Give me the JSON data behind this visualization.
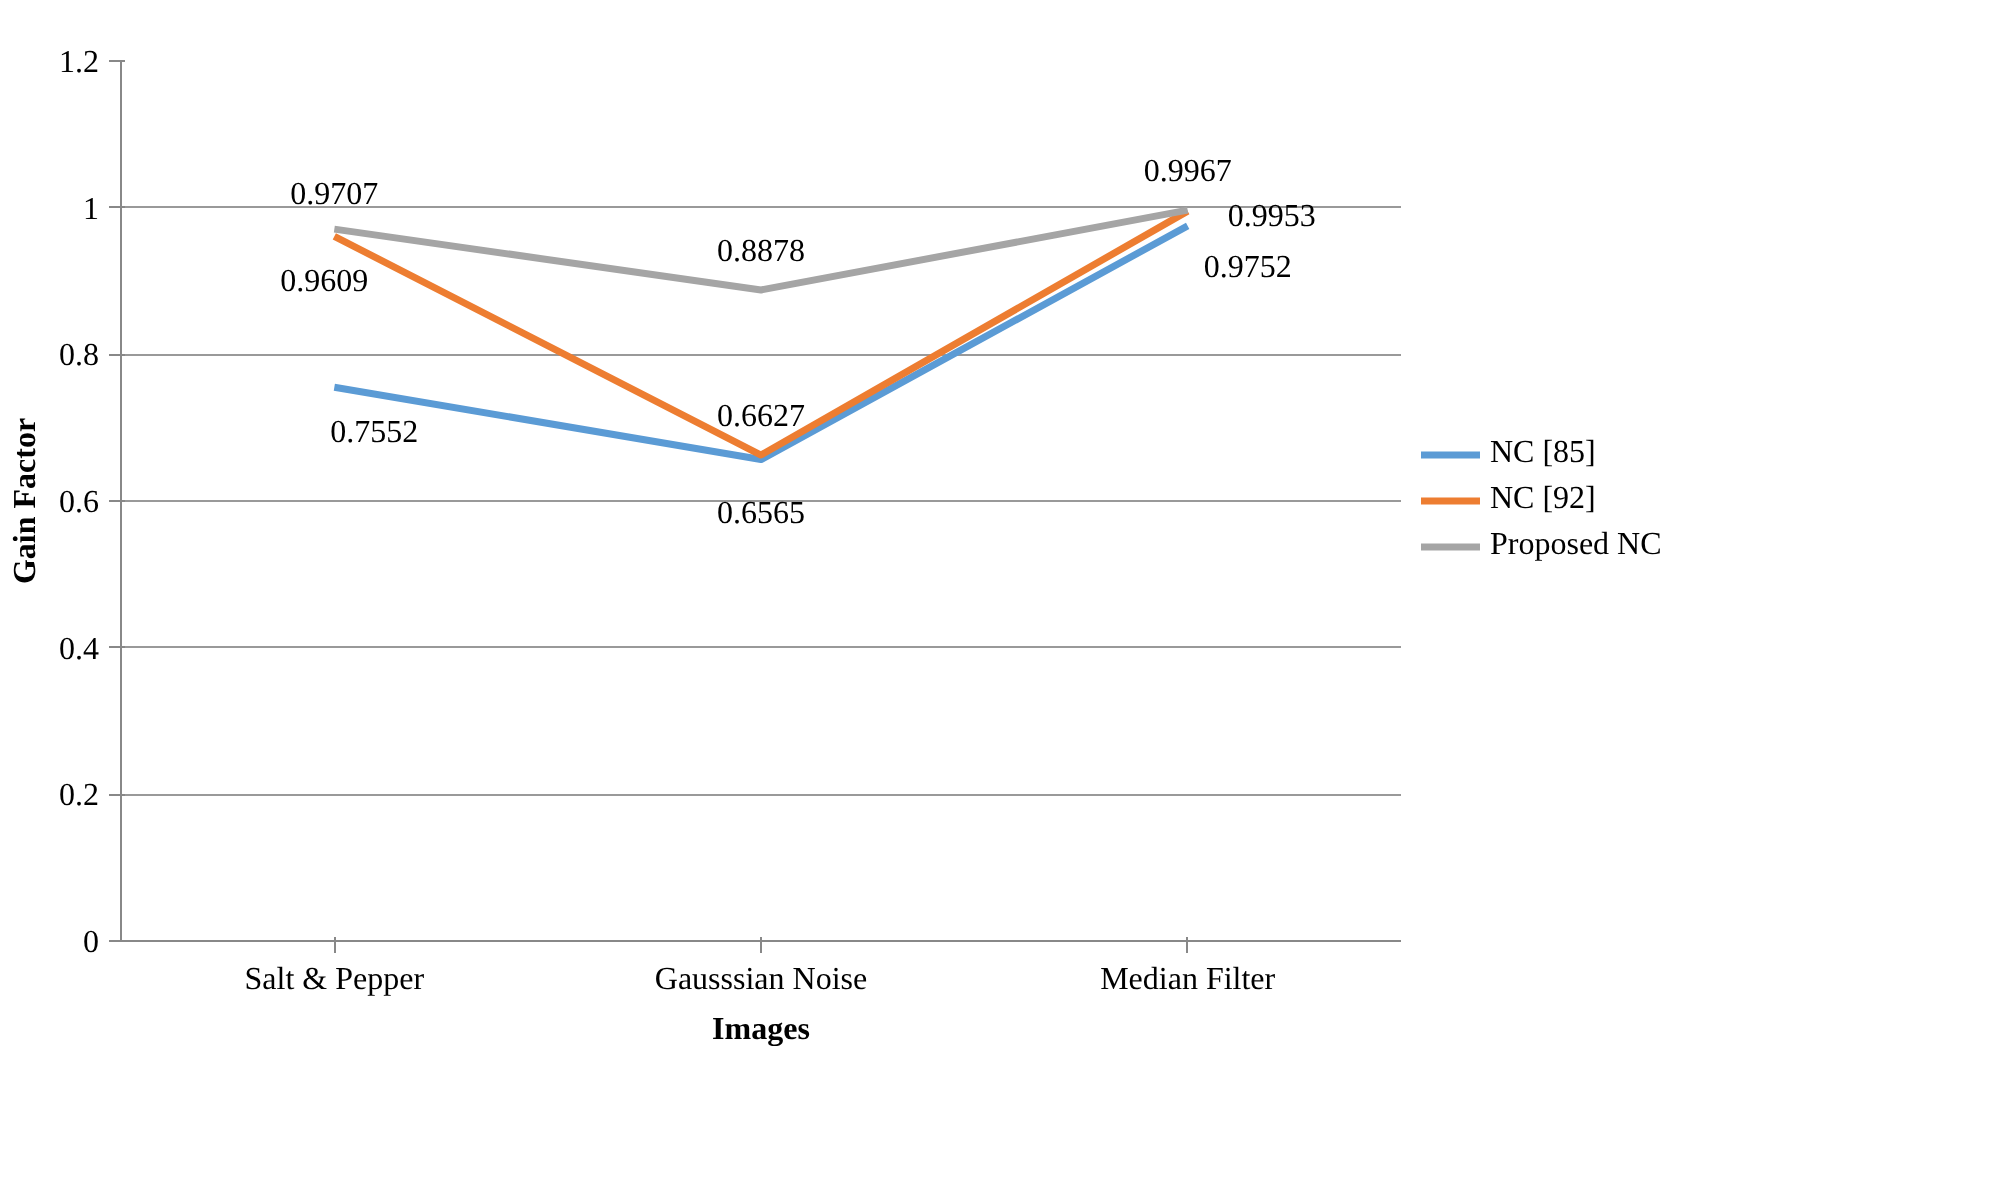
{
  "chart_data": {
    "type": "line",
    "xlabel": "Images",
    "ylabel": "Gain Factor",
    "categories": [
      "Salt & Pepper",
      "Gausssian Noise",
      "Median Filter"
    ],
    "series": [
      {
        "name": "NC [85]",
        "color": "#5b9bd5",
        "values": [
          0.7552,
          0.6565,
          0.9752
        ]
      },
      {
        "name": "NC [92]",
        "color": "#ed7d31",
        "values": [
          0.9609,
          0.6627,
          0.9953
        ]
      },
      {
        "name": "Proposed NC",
        "color": "#a5a5a5",
        "values": [
          0.9707,
          0.8878,
          0.9967
        ]
      }
    ],
    "ylim": [
      0,
      1.2
    ],
    "yticks": [
      0,
      0.2,
      0.4,
      0.6,
      0.8,
      1,
      1.2
    ],
    "grid": "y",
    "legend": "right",
    "data_labels": true,
    "marker": "none",
    "line_style": "solid"
  }
}
